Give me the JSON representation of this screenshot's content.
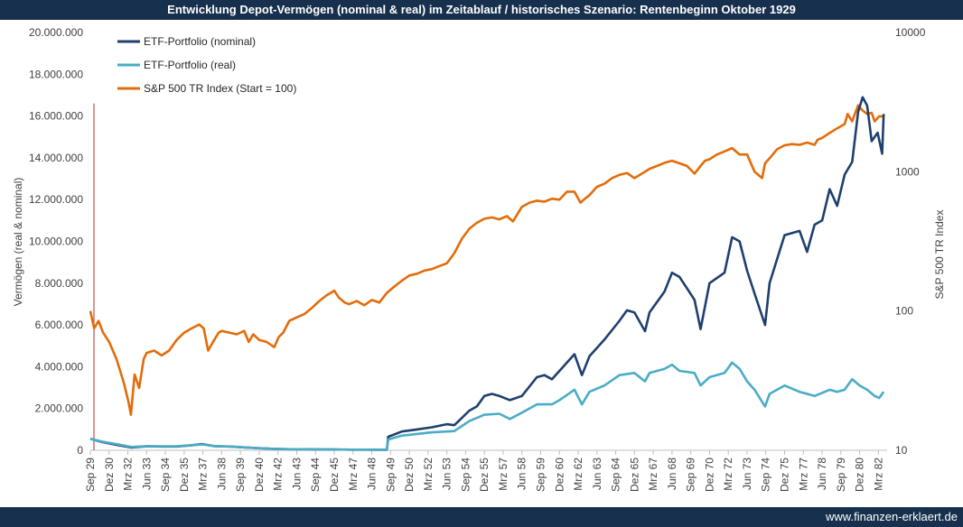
{
  "header": {
    "title": "Entwicklung Depot-Vermögen (nominal & real) im Zeitablauf / historisches Szenario: Rentenbeginn Oktober 1929"
  },
  "footer": {
    "site": "www.finanzen-erklaert.de"
  },
  "chart_data": {
    "type": "line",
    "title": "Entwicklung Depot-Vermögen (nominal & real) im Zeitablauf / historisches Szenario: Rentenbeginn Oktober 1929",
    "ylabel": "Vermögen (real & nominal)",
    "y2label": "S&P 500 TR Index",
    "ylim": [
      0,
      20000000
    ],
    "y2lim": [
      10,
      10000
    ],
    "y2scale": "log",
    "y_ticks": [
      "0",
      "2.000.000",
      "4.000.000",
      "6.000.000",
      "8.000.000",
      "10.000.000",
      "12.000.000",
      "14.000.000",
      "16.000.000",
      "18.000.000",
      "20.000.000"
    ],
    "y2_ticks": [
      "10",
      "100",
      "1000",
      "10000"
    ],
    "x_ticks": [
      "Sep 29",
      "Dez 30",
      "Mrz 32",
      "Jun 33",
      "Sep 34",
      "Dez 35",
      "Mrz 37",
      "Jun 38",
      "Sep 39",
      "Dez 40",
      "Mrz 42",
      "Jun 43",
      "Sep 44",
      "Dez 45",
      "Mrz 47",
      "Jun 48",
      "Sep 49",
      "Dez 50",
      "Mrz 52",
      "Jun 53",
      "Sep 54",
      "Dez 55",
      "Mrz 57",
      "Jun 58",
      "Sep 59",
      "Dez 60",
      "Mrz 62",
      "Jun 63",
      "Sep 64",
      "Dez 65",
      "Mrz 67",
      "Jun 68",
      "Sep 69",
      "Dez 70",
      "Mrz 72",
      "Jun 73",
      "Sep 74",
      "Dez 75",
      "Mrz 77",
      "Jun 78",
      "Sep 79",
      "Dez 80",
      "Mrz 82"
    ],
    "legend_position": "top-left",
    "grid": false,
    "series": [
      {
        "name": "ETF-Portfolio (nominal)",
        "color": "#1f3f6e",
        "axis": "left",
        "x": [
          1929.75,
          1930.5,
          1931.5,
          1932.5,
          1933.5,
          1934.5,
          1935.5,
          1936.5,
          1937.2,
          1938,
          1939,
          1940,
          1941,
          1942,
          1943,
          1944,
          1945,
          1946,
          1947,
          1948,
          1949.5,
          1949.6,
          1950.5,
          1951.5,
          1952.5,
          1953.5,
          1954,
          1955,
          1955.5,
          1956,
          1956.5,
          1957,
          1957.7,
          1958.5,
          1959.5,
          1960,
          1960.5,
          1961,
          1962,
          1962.5,
          1963,
          1964,
          1965,
          1965.5,
          1966,
          1966.7,
          1967,
          1968,
          1968.5,
          1969,
          1970,
          1970.4,
          1971,
          1972,
          1972.5,
          1973,
          1973.5,
          1974,
          1974.7,
          1975,
          1976,
          1977,
          1977.5,
          1978,
          1978.5,
          1979,
          1979.5,
          1980,
          1980.5,
          1980.7,
          1980.9,
          1981.2,
          1981.5,
          1981.8,
          1982.2,
          1982.5,
          1982.6
        ],
        "y": [
          550000,
          400000,
          260000,
          130000,
          190000,
          180000,
          180000,
          240000,
          300000,
          200000,
          180000,
          140000,
          100000,
          70000,
          50000,
          50000,
          40000,
          40000,
          30000,
          30000,
          20000,
          650000,
          900000,
          1000000,
          1100000,
          1250000,
          1200000,
          1900000,
          2100000,
          2600000,
          2700000,
          2600000,
          2400000,
          2600000,
          3500000,
          3600000,
          3400000,
          3800000,
          4600000,
          3600000,
          4500000,
          5300000,
          6200000,
          6700000,
          6600000,
          5700000,
          6600000,
          7600000,
          8500000,
          8300000,
          7200000,
          5800000,
          8000000,
          8500000,
          10200000,
          10000000,
          8600000,
          7500000,
          6000000,
          8000000,
          10300000,
          10500000,
          9500000,
          10800000,
          11000000,
          12500000,
          11700000,
          13200000,
          13800000,
          15000000,
          16200000,
          16900000,
          16500000,
          14800000,
          15200000,
          14200000,
          16100000
        ]
      },
      {
        "name": "ETF-Portfolio (real)",
        "color": "#4bacc6",
        "axis": "left",
        "x": [
          1929.75,
          1930.5,
          1931.5,
          1932.5,
          1933.5,
          1934.5,
          1935.5,
          1936.5,
          1937.2,
          1938,
          1939,
          1940,
          1941,
          1942,
          1943,
          1944,
          1945,
          1946,
          1947,
          1948,
          1949.5,
          1949.6,
          1950.5,
          1951.5,
          1952.5,
          1953.5,
          1954,
          1955,
          1956,
          1957,
          1957.7,
          1958.5,
          1959.5,
          1960.5,
          1961,
          1962,
          1962.5,
          1963,
          1964,
          1965,
          1966,
          1966.7,
          1967,
          1968,
          1968.5,
          1969,
          1970,
          1970.4,
          1971,
          1972,
          1972.5,
          1973,
          1973.5,
          1974,
          1974.7,
          1975,
          1976,
          1977,
          1978,
          1979,
          1979.5,
          1980,
          1980.5,
          1981,
          1981.5,
          1982,
          1982.3,
          1982.6
        ],
        "y": [
          550000,
          420000,
          300000,
          160000,
          200000,
          190000,
          190000,
          240000,
          280000,
          200000,
          180000,
          140000,
          100000,
          70000,
          50000,
          50000,
          40000,
          40000,
          30000,
          30000,
          20000,
          520000,
          700000,
          780000,
          860000,
          900000,
          920000,
          1400000,
          1700000,
          1750000,
          1500000,
          1800000,
          2200000,
          2200000,
          2400000,
          2900000,
          2200000,
          2800000,
          3100000,
          3600000,
          3700000,
          3300000,
          3700000,
          3900000,
          4100000,
          3800000,
          3700000,
          3100000,
          3500000,
          3700000,
          4200000,
          3900000,
          3300000,
          2900000,
          2100000,
          2700000,
          3100000,
          2800000,
          2600000,
          2900000,
          2800000,
          2900000,
          3400000,
          3100000,
          2900000,
          2600000,
          2500000,
          2800000
        ]
      },
      {
        "name": "S&P 500 TR Index (Start = 100)",
        "color": "#e36c0a",
        "axis": "right",
        "x": [
          1929.75,
          1930,
          1930.3,
          1930.6,
          1931,
          1931.5,
          1932,
          1932.3,
          1932.45,
          1932.7,
          1933,
          1933.3,
          1933.5,
          1934,
          1934.5,
          1935,
          1935.5,
          1936,
          1936.5,
          1937,
          1937.3,
          1937.6,
          1938,
          1938.3,
          1938.5,
          1939,
          1939.5,
          1940,
          1940.3,
          1940.6,
          1941,
          1941.5,
          1942,
          1942.3,
          1942.6,
          1943,
          1943.5,
          1944,
          1944.5,
          1945,
          1945.5,
          1946,
          1946.3,
          1946.7,
          1947,
          1947.5,
          1948,
          1948.5,
          1949,
          1949.5,
          1950,
          1950.5,
          1951,
          1951.5,
          1952,
          1952.5,
          1953,
          1953.5,
          1954,
          1954.5,
          1955,
          1955.5,
          1956,
          1956.5,
          1957,
          1957.5,
          1957.9,
          1958.5,
          1959,
          1959.5,
          1960,
          1960.5,
          1961,
          1961.5,
          1962,
          1962.4,
          1962.7,
          1963,
          1963.5,
          1964,
          1964.5,
          1965,
          1965.5,
          1966,
          1966.7,
          1967,
          1967.5,
          1968,
          1968.5,
          1969,
          1969.5,
          1970,
          1970.4,
          1970.7,
          1971,
          1971.5,
          1972,
          1972.5,
          1973,
          1973.5,
          1974,
          1974.5,
          1974.7,
          1975,
          1975.5,
          1976,
          1976.5,
          1977,
          1977.5,
          1978,
          1978.2,
          1978.5,
          1979,
          1979.5,
          1980,
          1980.2,
          1980.5,
          1980.9,
          1981.2,
          1981.5,
          1981.8,
          1982,
          1982.3,
          1982.6
        ],
        "y": [
          100,
          75,
          85,
          70,
          60,
          45,
          30,
          22,
          18,
          35,
          28,
          45,
          50,
          52,
          48,
          52,
          62,
          70,
          75,
          80,
          75,
          52,
          62,
          70,
          72,
          70,
          68,
          72,
          60,
          68,
          62,
          60,
          55,
          65,
          70,
          85,
          90,
          95,
          105,
          118,
          130,
          140,
          125,
          115,
          112,
          118,
          110,
          120,
          115,
          135,
          150,
          165,
          180,
          185,
          195,
          200,
          210,
          220,
          260,
          330,
          390,
          430,
          460,
          470,
          455,
          480,
          440,
          560,
          600,
          620,
          610,
          640,
          630,
          720,
          720,
          600,
          640,
          680,
          780,
          820,
          900,
          950,
          980,
          900,
          1000,
          1050,
          1100,
          1160,
          1200,
          1150,
          1100,
          970,
          1100,
          1200,
          1230,
          1330,
          1400,
          1480,
          1330,
          1330,
          1000,
          900,
          1150,
          1250,
          1450,
          1550,
          1580,
          1560,
          1620,
          1560,
          1700,
          1750,
          1900,
          2050,
          2200,
          2600,
          2300,
          3000,
          2750,
          2600,
          2650,
          2300,
          2500,
          2500
        ]
      }
    ]
  }
}
